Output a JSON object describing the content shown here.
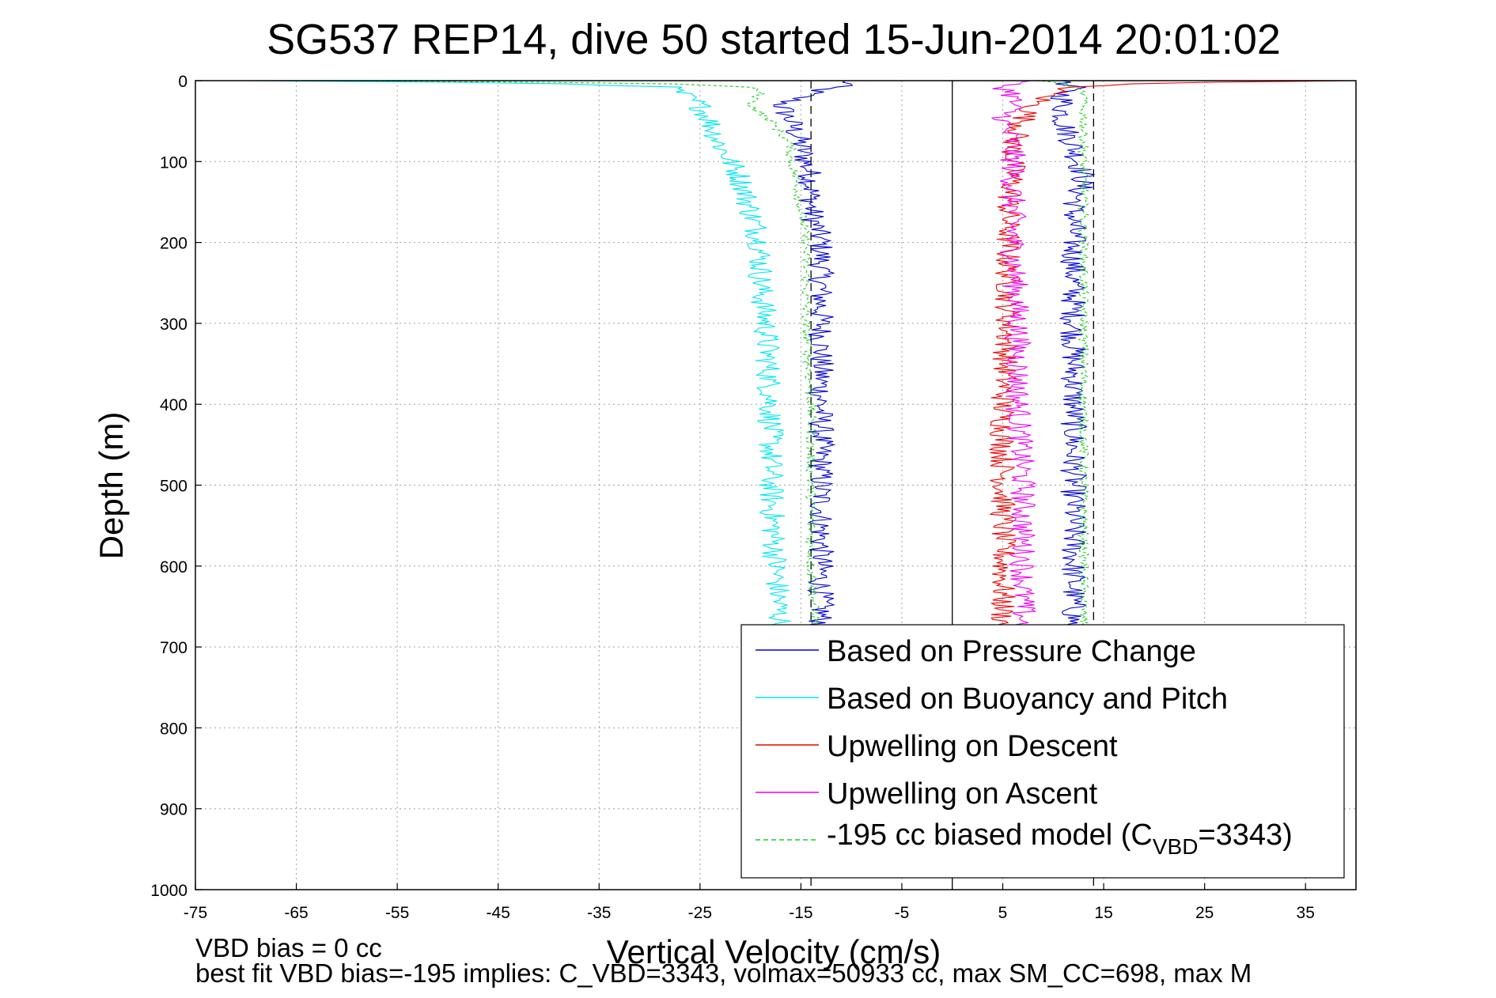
{
  "chart_data": {
    "type": "line",
    "title": "SG537 REP14, dive 50 started 15-Jun-2014 20:01:02",
    "xlabel": "Vertical Velocity (cm/s)",
    "ylabel": "Depth (m)",
    "xlim": [
      -75,
      40
    ],
    "ylim": [
      0,
      1000
    ],
    "y_reversed": true,
    "grid": true,
    "x_ticks": [
      -75,
      -65,
      -55,
      -45,
      -35,
      -25,
      -15,
      -5,
      5,
      15,
      25,
      35
    ],
    "y_ticks": [
      0,
      100,
      200,
      300,
      400,
      500,
      600,
      700,
      800,
      900,
      1000
    ],
    "reference_lines": [
      {
        "x": 0,
        "style": "solid",
        "color": "#000000"
      },
      {
        "x": -14,
        "style": "dashed",
        "color": "#000000"
      },
      {
        "x": 14,
        "style": "dashed",
        "color": "#000000"
      }
    ],
    "legend_position": "bottom-right",
    "series": [
      {
        "name": "Based on Pressure Change",
        "color": "#0000cc",
        "style": "solid",
        "segments": [
          {
            "depth": [
              0,
              3,
              8,
              15,
              30,
              50,
              80,
              120,
              160,
              200,
              300,
              400,
              500,
              600,
              680
            ],
            "velocity": [
              -11,
              -10,
              -12,
              -14,
              -17,
              -16,
              -15,
              -14,
              -14,
              -13,
              -13,
              -13,
              -13,
              -13,
              -13
            ]
          },
          {
            "depth": [
              0,
              3,
              8,
              15,
              30,
              50,
              80,
              120,
              160,
              200,
              300,
              400,
              500,
              600,
              680
            ],
            "velocity": [
              12,
              10,
              12,
              11,
              11,
              11,
              12,
              13,
              12,
              12,
              12,
              12,
              12,
              12,
              12
            ]
          }
        ]
      },
      {
        "name": "Based on Buoyancy and Pitch",
        "color": "#00e5ee",
        "style": "solid",
        "segments": [
          {
            "depth": [
              0,
              3,
              8,
              15,
              30,
              50,
              80,
              100,
              120,
              160,
              200,
              250,
              300,
              400,
              500,
              600,
              680
            ],
            "velocity": [
              -70,
              -40,
              -28,
              -27,
              -25,
              -24,
              -23,
              -22,
              -21,
              -20,
              -19,
              -19,
              -18.5,
              -18,
              -18,
              -17.5,
              -17
            ]
          }
        ]
      },
      {
        "name": "Upwelling on Descent",
        "color": "#ee0000",
        "style": "solid",
        "segments": [
          {
            "depth": [
              0,
              3,
              8,
              15,
              30,
              50,
              80,
              120,
              160,
              200,
              300,
              400,
              500,
              600,
              680
            ],
            "velocity": [
              40,
              18,
              12,
              10,
              8,
              7,
              6,
              6,
              5.5,
              5.5,
              5.5,
              5,
              5,
              5,
              5
            ]
          }
        ]
      },
      {
        "name": "Upwelling on Ascent",
        "color": "#ee00ee",
        "style": "solid",
        "segments": [
          {
            "depth": [
              0,
              3,
              8,
              15,
              30,
              50,
              80,
              120,
              160,
              200,
              300,
              400,
              500,
              600,
              680
            ],
            "velocity": [
              7,
              6,
              5,
              6,
              6,
              5,
              6,
              6,
              6,
              6,
              6.5,
              6.5,
              7,
              7,
              7
            ]
          }
        ]
      },
      {
        "name": "-195 cc biased model (CVBD=3343)",
        "color": "#22cc22",
        "style": "dashed",
        "segments": [
          {
            "depth": [
              0,
              3,
              8,
              15,
              30,
              50,
              80,
              100,
              120,
              160,
              200,
              300,
              400,
              500,
              600,
              680
            ],
            "velocity": [
              -60,
              -30,
              -20,
              -19,
              -20,
              -18,
              -16,
              -16,
              -15.5,
              -15,
              -14.5,
              -14.5,
              -14,
              -14,
              -14,
              -13.5
            ]
          },
          {
            "depth": [
              0,
              3,
              8,
              15,
              30,
              50,
              80,
              120,
              160,
              200,
              300,
              400,
              500,
              600,
              680
            ],
            "velocity": [
              8,
              11,
              12,
              13,
              13,
              13,
              13,
              13,
              13,
              13,
              13,
              13,
              13,
              13,
              13
            ]
          }
        ]
      }
    ]
  },
  "legend": {
    "entries": [
      {
        "label": "Based on Pressure Change"
      },
      {
        "label": "Based on Buoyancy and Pitch"
      },
      {
        "label": "Upwelling on Descent"
      },
      {
        "label": "Upwelling on Ascent"
      },
      {
        "label_pre": "-195 cc biased model (C",
        "label_sub": "VBD",
        "label_post": "=3343)"
      }
    ]
  },
  "footer": {
    "line1": "VBD bias = 0 cc",
    "line2": "best fit VBD bias=-195 implies: C_VBD=3343, volmax=50933 cc, max SM_CC=698, max M"
  }
}
